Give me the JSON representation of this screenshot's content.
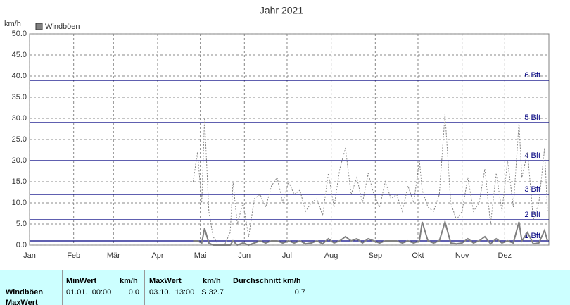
{
  "chart_data": {
    "type": "line",
    "title": "Jahr 2021",
    "y_label": "km/h",
    "xlim": [
      0,
      365
    ],
    "xticks": [
      {
        "value": 0,
        "label": "Jan"
      },
      {
        "value": 31,
        "label": "Feb"
      },
      {
        "value": 59,
        "label": "Mär"
      },
      {
        "value": 90,
        "label": "Apr"
      },
      {
        "value": 120,
        "label": "Mai"
      },
      {
        "value": 151,
        "label": "Jun"
      },
      {
        "value": 181,
        "label": "Jul"
      },
      {
        "value": 212,
        "label": "Aug"
      },
      {
        "value": 243,
        "label": "Sep"
      },
      {
        "value": 273,
        "label": "Okt"
      },
      {
        "value": 304,
        "label": "Nov"
      },
      {
        "value": 334,
        "label": "Dez"
      }
    ],
    "ylim": [
      0,
      50
    ],
    "yticks": [
      {
        "value": 0,
        "label": "0.0"
      },
      {
        "value": 5,
        "label": "5.0"
      },
      {
        "value": 10,
        "label": "10.0"
      },
      {
        "value": 15,
        "label": "15.0"
      },
      {
        "value": 20,
        "label": "20.0"
      },
      {
        "value": 25,
        "label": "25.0"
      },
      {
        "value": 30,
        "label": "30.0"
      },
      {
        "value": 35,
        "label": "35.0"
      },
      {
        "value": 40,
        "label": "40.0"
      },
      {
        "value": 45,
        "label": "45.0"
      },
      {
        "value": 50,
        "label": "50.0"
      }
    ],
    "grid": true,
    "reference_lines": [
      {
        "value": 1,
        "label": "1 Bft"
      },
      {
        "value": 6,
        "label": "2 Bft"
      },
      {
        "value": 12,
        "label": "3 Bft"
      },
      {
        "value": 20,
        "label": "4 Bft"
      },
      {
        "value": 29,
        "label": "5 Bft"
      },
      {
        "value": 39,
        "label": "6 Bft"
      }
    ],
    "reference_color": "#000080",
    "x": [
      115,
      118,
      121,
      123,
      126,
      129,
      133,
      137,
      141,
      143,
      146,
      150,
      154,
      158,
      162,
      166,
      170,
      174,
      178,
      182,
      186,
      190,
      194,
      198,
      202,
      206,
      210,
      214,
      218,
      222,
      226,
      230,
      234,
      238,
      242,
      246,
      250,
      254,
      258,
      262,
      266,
      270,
      274,
      276,
      280,
      284,
      288,
      292,
      296,
      300,
      304,
      308,
      312,
      316,
      320,
      324,
      328,
      332,
      336,
      340,
      344,
      346,
      350,
      354,
      358,
      362,
      364
    ],
    "series": [
      {
        "name": "Windböen",
        "color": "#808080",
        "values": [
          1,
          1,
          0.5,
          4,
          0.5,
          0,
          0,
          0,
          0,
          1,
          0,
          0.5,
          0,
          0.5,
          1,
          0.5,
          1,
          1,
          0.5,
          1,
          0.5,
          1,
          0.3,
          0.5,
          1,
          0.3,
          1.5,
          0.5,
          1,
          2,
          1,
          1.5,
          0.5,
          1.5,
          1,
          0.5,
          1,
          1,
          1,
          0.5,
          1,
          0.5,
          1,
          5.5,
          1,
          0.5,
          1,
          5.5,
          0.5,
          0.3,
          0.5,
          1.5,
          0.5,
          1,
          2,
          0.3,
          1.5,
          0.5,
          1,
          0.5,
          5.5,
          1,
          3,
          0.3,
          0.5,
          3.5,
          1
        ]
      },
      {
        "color": "#808080",
        "dashed": true,
        "values": [
          15,
          22,
          10,
          30,
          8,
          2,
          0,
          0,
          3,
          15,
          5,
          10,
          2,
          11,
          12,
          9,
          14,
          16,
          10,
          15,
          12,
          13,
          8,
          10,
          11,
          7,
          17,
          9,
          18,
          23,
          12,
          16,
          10,
          17,
          12,
          9,
          15,
          11,
          12,
          8,
          14,
          10,
          20,
          13,
          9,
          8,
          12,
          31,
          10,
          6,
          8,
          16,
          8,
          10,
          18,
          5,
          17,
          8,
          20,
          9,
          29,
          16,
          22,
          6,
          10,
          23,
          8
        ]
      }
    ]
  },
  "table": {
    "row_labels": [
      "Windböen",
      "MaxWert"
    ],
    "columns": [
      {
        "header": "MinWert",
        "unit": "km/h",
        "time": "01.01.  00:00",
        "value": "0.0"
      },
      {
        "header": "MaxWert",
        "unit": "km/h",
        "time": "03.10.  13:00",
        "value": "S 32.7"
      },
      {
        "header": "Durchschnitt km/h",
        "value": "0.7"
      }
    ]
  }
}
